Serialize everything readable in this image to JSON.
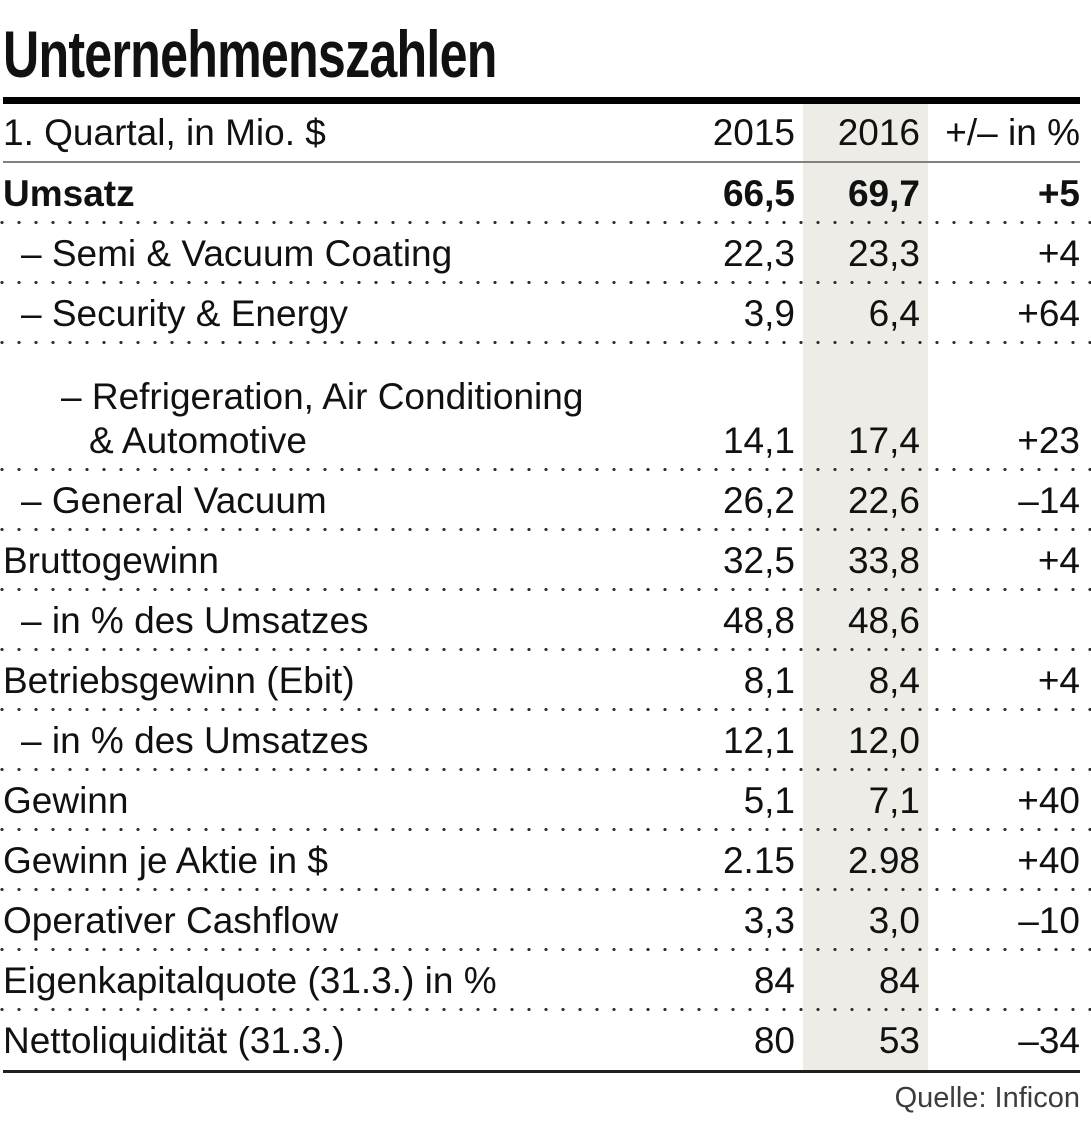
{
  "title": "Unternehmenszahlen",
  "chart_data": {
    "type": "table",
    "title": "Unternehmenszahlen",
    "columns": [
      "1. Quartal, in Mio. $",
      "2015",
      "2016",
      "+/– in %"
    ],
    "header": {
      "label": "1. Quartal, in Mio. $",
      "y2015": "2015",
      "y2016": "2016",
      "change": "+/– in %"
    },
    "highlight_column": "2016",
    "rows": [
      {
        "label": "Umsatz",
        "v2015": "66,5",
        "v2016": "69,7",
        "change": "+5",
        "bold": true,
        "indent": 0
      },
      {
        "label": "– Semi & Vacuum Coating",
        "v2015": "22,3",
        "v2016": "23,3",
        "change": "+4",
        "indent": 1
      },
      {
        "label": "– Security & Energy",
        "v2015": "3,9",
        "v2016": "6,4",
        "change": "+64",
        "indent": 1
      },
      {
        "label": "– Refrigeration, Air Conditioning",
        "label2": "& Automotive",
        "v2015": "14,1",
        "v2016": "17,4",
        "change": "+23",
        "indent": 2
      },
      {
        "label": "– General Vacuum",
        "v2015": "26,2",
        "v2016": "22,6",
        "change": "–14",
        "indent": 1
      },
      {
        "label": "Bruttogewinn",
        "v2015": "32,5",
        "v2016": "33,8",
        "change": "+4",
        "indent": 0
      },
      {
        "label": "– in % des Umsatzes",
        "v2015": "48,8",
        "v2016": "48,6",
        "change": "",
        "indent": 1
      },
      {
        "label": "Betriebsgewinn (Ebit)",
        "v2015": "8,1",
        "v2016": "8,4",
        "change": "+4",
        "indent": 0
      },
      {
        "label": "– in % des Umsatzes",
        "v2015": "12,1",
        "v2016": "12,0",
        "change": "",
        "indent": 1
      },
      {
        "label": "Gewinn",
        "v2015": "5,1",
        "v2016": "7,1",
        "change": "+40",
        "indent": 0
      },
      {
        "label": "Gewinn je Aktie in $",
        "v2015": "2.15",
        "v2016": "2.98",
        "change": "+40",
        "indent": 0
      },
      {
        "label": "Operativer Cashflow",
        "v2015": "3,3",
        "v2016": "3,0",
        "change": "–10",
        "indent": 0
      },
      {
        "label": "Eigenkapitalquote (31.3.) in %",
        "v2015": "84",
        "v2016": "84",
        "change": "",
        "indent": 0
      },
      {
        "label": "Nettoliquidität (31.3.)",
        "v2015": "80",
        "v2016": "53",
        "change": "–34",
        "indent": 0
      }
    ],
    "source": "Quelle: Inficon"
  },
  "colors": {
    "text": "#111111",
    "highlight_band": "#EDECE6",
    "thick_rule": "#000000",
    "thin_rule": "#808080",
    "bottom_rule": "#1f1f1f",
    "dot_separator": "#2e2e2e",
    "source_text": "#3d3d3d",
    "background": "#ffffff"
  }
}
